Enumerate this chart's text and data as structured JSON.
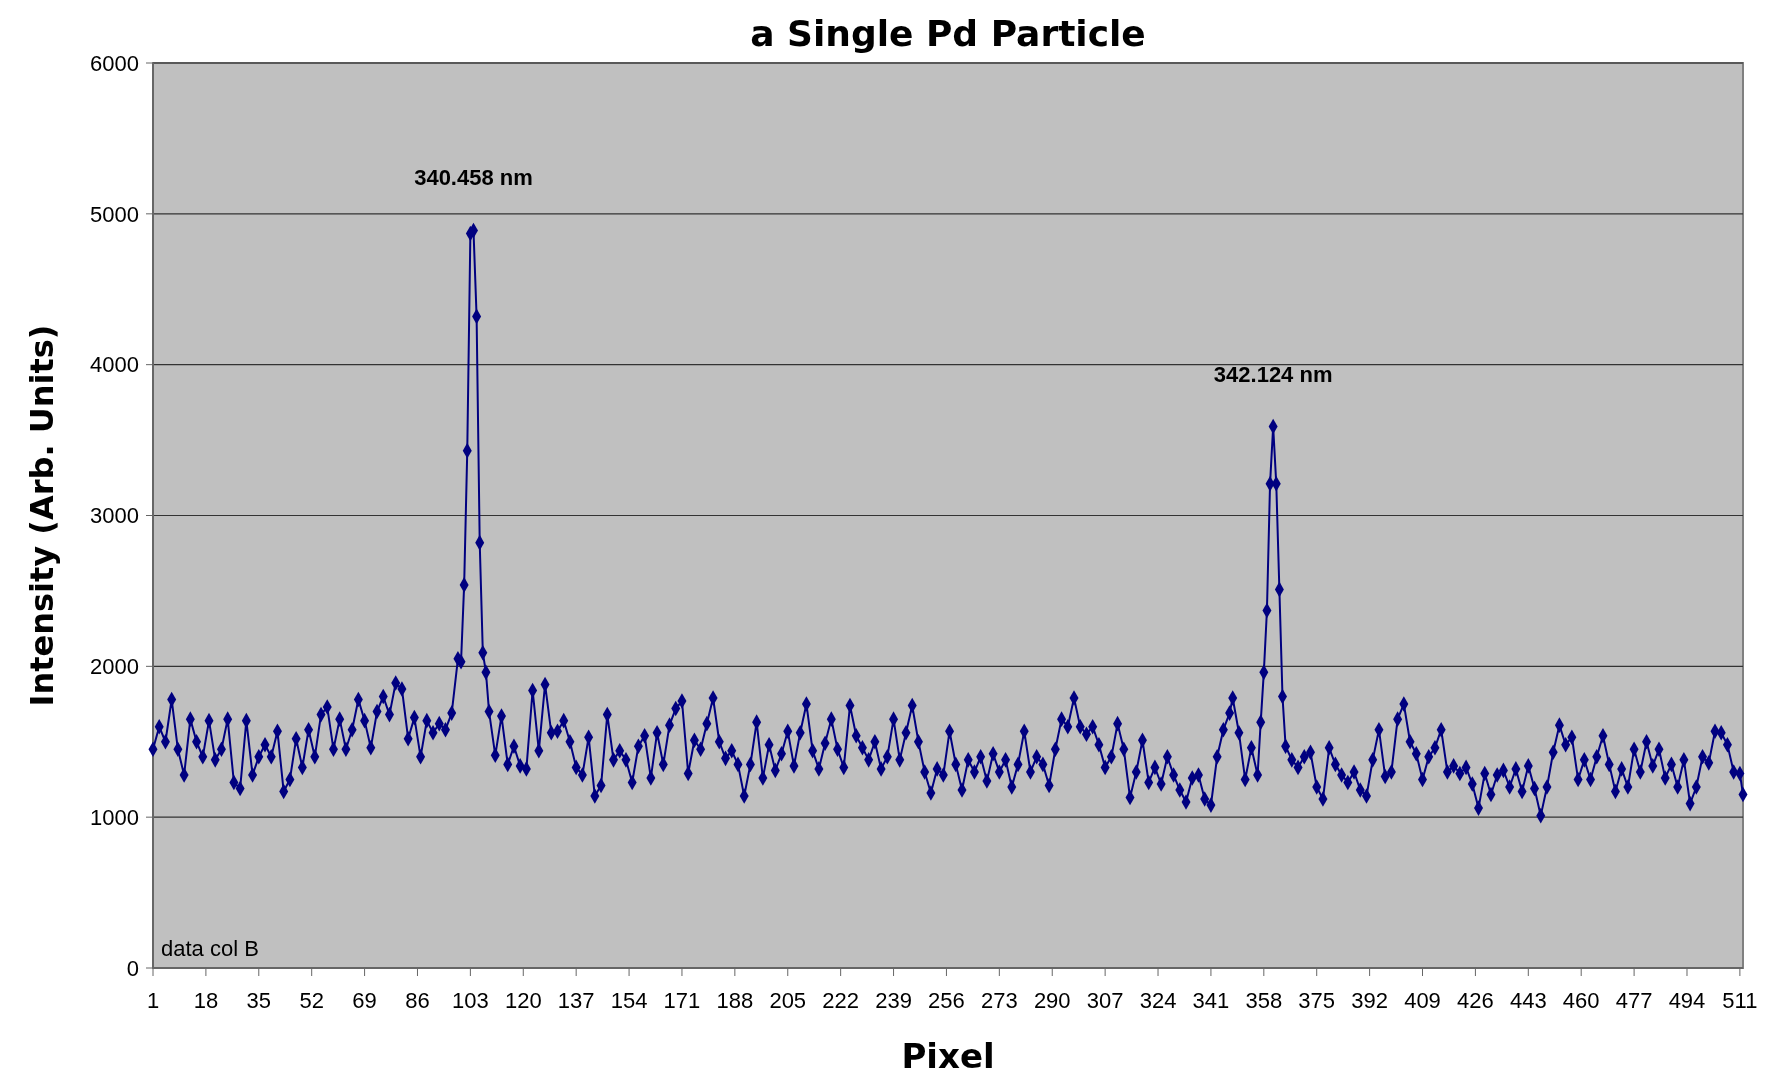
{
  "chart_data": {
    "type": "line",
    "title": "a Single Pd Particle",
    "xlabel": "Pixel",
    "ylabel": "Intensity (Arb. Units)",
    "xlim": [
      1,
      512
    ],
    "xticks": [
      1,
      18,
      35,
      52,
      69,
      86,
      103,
      120,
      137,
      154,
      171,
      188,
      205,
      222,
      239,
      256,
      273,
      290,
      307,
      324,
      341,
      358,
      375,
      392,
      409,
      426,
      443,
      460,
      477,
      494,
      511
    ],
    "ylim": [
      0,
      6000
    ],
    "yticks": [
      0,
      1000,
      2000,
      3000,
      4000,
      5000,
      6000
    ],
    "grid": "y",
    "marker": "diamond",
    "line_style": "solid",
    "annotations": [
      {
        "text": "340.458 nm",
        "x": 104,
        "y": 4890
      },
      {
        "text": "342.124 nm",
        "x": 361,
        "y": 3590
      },
      "data col B"
    ],
    "series": [
      {
        "color": "#000080",
        "x": [
          1,
          3,
          5,
          7,
          9,
          11,
          13,
          15,
          17,
          19,
          21,
          23,
          25,
          27,
          29,
          31,
          33,
          35,
          37,
          39,
          41,
          43,
          45,
          47,
          49,
          51,
          53,
          55,
          57,
          59,
          61,
          63,
          65,
          67,
          69,
          71,
          73,
          75,
          77,
          79,
          81,
          83,
          85,
          87,
          89,
          91,
          93,
          95,
          97,
          99,
          100,
          101,
          102,
          103,
          104,
          105,
          106,
          107,
          108,
          109,
          111,
          113,
          115,
          117,
          119,
          121,
          123,
          125,
          127,
          129,
          131,
          133,
          135,
          137,
          139,
          141,
          143,
          145,
          147,
          149,
          151,
          153,
          155,
          157,
          159,
          161,
          163,
          165,
          167,
          169,
          171,
          173,
          175,
          177,
          179,
          181,
          183,
          185,
          187,
          189,
          191,
          193,
          195,
          197,
          199,
          201,
          203,
          205,
          207,
          209,
          211,
          213,
          215,
          217,
          219,
          221,
          223,
          225,
          227,
          229,
          231,
          233,
          235,
          237,
          239,
          241,
          243,
          245,
          247,
          249,
          251,
          253,
          255,
          257,
          259,
          261,
          263,
          265,
          267,
          269,
          271,
          273,
          275,
          277,
          279,
          281,
          283,
          285,
          287,
          289,
          291,
          293,
          295,
          297,
          299,
          301,
          303,
          305,
          307,
          309,
          311,
          313,
          315,
          317,
          319,
          321,
          323,
          325,
          327,
          329,
          331,
          333,
          335,
          337,
          339,
          341,
          343,
          345,
          347,
          348,
          350,
          352,
          354,
          356,
          357,
          358,
          359,
          360,
          361,
          362,
          363,
          364,
          365,
          367,
          369,
          371,
          373,
          375,
          377,
          379,
          381,
          383,
          385,
          387,
          389,
          391,
          393,
          395,
          397,
          399,
          401,
          403,
          405,
          407,
          409,
          411,
          413,
          415,
          417,
          419,
          421,
          423,
          425,
          427,
          429,
          431,
          433,
          435,
          437,
          439,
          441,
          443,
          445,
          447,
          449,
          451,
          453,
          455,
          457,
          459,
          461,
          463,
          465,
          467,
          469,
          471,
          473,
          475,
          477,
          479,
          481,
          483,
          485,
          487,
          489,
          491,
          493,
          495,
          497,
          499,
          501,
          503,
          505,
          507,
          509,
          511,
          512
        ],
        "values": [
          1450,
          1600,
          1500,
          1780,
          1450,
          1280,
          1650,
          1500,
          1400,
          1640,
          1380,
          1450,
          1650,
          1230,
          1190,
          1640,
          1280,
          1400,
          1480,
          1400,
          1570,
          1170,
          1250,
          1520,
          1330,
          1580,
          1400,
          1680,
          1730,
          1450,
          1650,
          1450,
          1580,
          1780,
          1640,
          1460,
          1700,
          1800,
          1680,
          1890,
          1850,
          1520,
          1660,
          1400,
          1640,
          1560,
          1620,
          1580,
          1690,
          2050,
          2030,
          2540,
          3430,
          4870,
          4890,
          4320,
          2820,
          2090,
          1960,
          1700,
          1410,
          1670,
          1350,
          1470,
          1340,
          1320,
          1840,
          1440,
          1880,
          1560,
          1570,
          1640,
          1500,
          1330,
          1280,
          1530,
          1140,
          1210,
          1680,
          1380,
          1440,
          1380,
          1230,
          1470,
          1540,
          1260,
          1560,
          1350,
          1610,
          1720,
          1770,
          1290,
          1510,
          1450,
          1620,
          1790,
          1500,
          1390,
          1440,
          1350,
          1140,
          1350,
          1630,
          1260,
          1480,
          1310,
          1420,
          1570,
          1340,
          1560,
          1750,
          1440,
          1320,
          1490,
          1650,
          1450,
          1330,
          1740,
          1540,
          1460,
          1380,
          1500,
          1320,
          1400,
          1650,
          1380,
          1560,
          1740,
          1500,
          1300,
          1160,
          1320,
          1280,
          1570,
          1350,
          1180,
          1380,
          1300,
          1400,
          1240,
          1420,
          1300,
          1380,
          1200,
          1350,
          1570,
          1300,
          1400,
          1350,
          1210,
          1450,
          1650,
          1600,
          1790,
          1600,
          1550,
          1600,
          1480,
          1330,
          1400,
          1620,
          1450,
          1130,
          1300,
          1510,
          1230,
          1330,
          1220,
          1400,
          1280,
          1180,
          1100,
          1260,
          1280,
          1120,
          1080,
          1400,
          1580,
          1690,
          1790,
          1560,
          1250,
          1460,
          1280,
          1630,
          1960,
          2370,
          3210,
          3590,
          3210,
          2510,
          1800,
          1470,
          1380,
          1330,
          1400,
          1430,
          1200,
          1120,
          1460,
          1350,
          1280,
          1230,
          1300,
          1180,
          1140,
          1380,
          1580,
          1270,
          1300,
          1650,
          1750,
          1500,
          1420,
          1250,
          1400,
          1460,
          1580,
          1300,
          1340,
          1290,
          1330,
          1220,
          1060,
          1290,
          1150,
          1280,
          1310,
          1200,
          1320,
          1170,
          1340,
          1190,
          1010,
          1200,
          1430,
          1610,
          1480,
          1530,
          1250,
          1380,
          1250,
          1400,
          1540,
          1350,
          1170,
          1320,
          1200,
          1450,
          1300,
          1500,
          1340,
          1450,
          1260,
          1350,
          1200,
          1380,
          1090,
          1200,
          1400,
          1360,
          1570,
          1560,
          1480,
          1300,
          1290,
          1150
        ]
      }
    ]
  }
}
